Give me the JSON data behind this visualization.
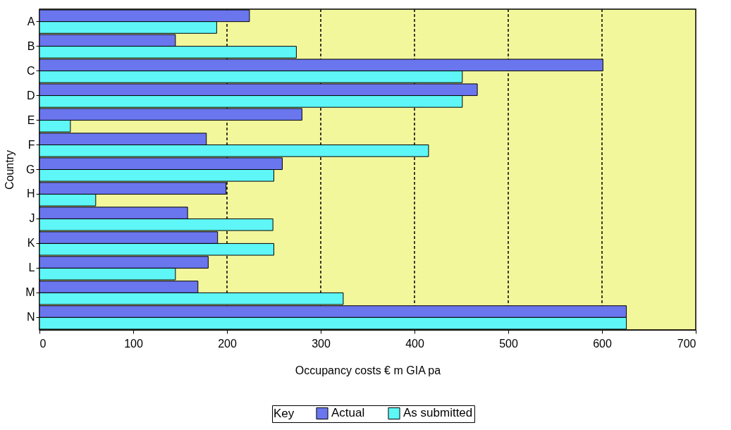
{
  "chart_data": {
    "type": "bar",
    "orientation": "horizontal",
    "xlabel": "Occupancy costs € m GIA pa",
    "ylabel": "Country",
    "legend_title": "Key",
    "legend": "bottom",
    "categories": [
      "A",
      "B",
      "C",
      "D",
      "E",
      "F",
      "G",
      "H",
      "J",
      "K",
      "L",
      "M",
      "N"
    ],
    "series": [
      {
        "name": "Actual",
        "color": "#6a76ee",
        "values": [
          224,
          145,
          601,
          467,
          280,
          178,
          259,
          199,
          158,
          190,
          180,
          169,
          626
        ]
      },
      {
        "name": "As submitted",
        "color": "#5ef6f6",
        "values": [
          189,
          274,
          451,
          451,
          33,
          415,
          250,
          60,
          249,
          250,
          145,
          324,
          626
        ]
      }
    ],
    "xlim": [
      0,
      700
    ],
    "xticks": [
      0,
      100,
      200,
      300,
      400,
      500,
      600,
      700
    ],
    "ref_lines": [
      {
        "axis": "x",
        "value": 200,
        "line_style": "dashed"
      },
      {
        "axis": "x",
        "value": 300,
        "line_style": "dashed"
      },
      {
        "axis": "x",
        "value": 400,
        "line_style": "dashed"
      },
      {
        "axis": "x",
        "value": 500,
        "line_style": "dashed"
      },
      {
        "axis": "x",
        "value": 600,
        "line_style": "dashed"
      }
    ]
  }
}
